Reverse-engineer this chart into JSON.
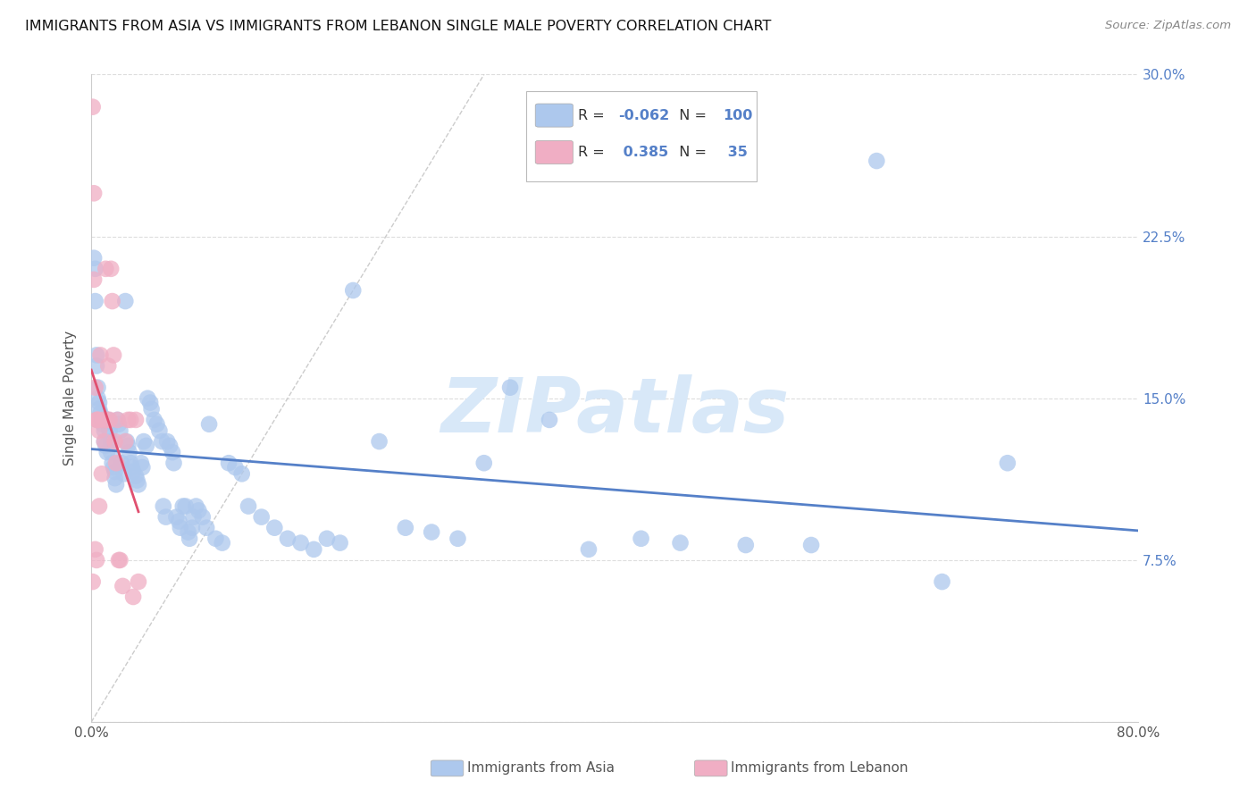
{
  "title": "IMMIGRANTS FROM ASIA VS IMMIGRANTS FROM LEBANON SINGLE MALE POVERTY CORRELATION CHART",
  "source": "Source: ZipAtlas.com",
  "ylabel": "Single Male Poverty",
  "xlim": [
    0,
    0.8
  ],
  "ylim": [
    0,
    0.3
  ],
  "yticks": [
    0.0,
    0.075,
    0.15,
    0.225,
    0.3
  ],
  "yticklabels_right": [
    "",
    "7.5%",
    "15.0%",
    "22.5%",
    "30.0%"
  ],
  "xtick_left_label": "0.0%",
  "xtick_right_label": "80.0%",
  "legend_blue_R": "-0.062",
  "legend_blue_N": "100",
  "legend_pink_R": "0.385",
  "legend_pink_N": "35",
  "blue_color": "#adc8ed",
  "pink_color": "#f0aec4",
  "blue_line_color": "#5580c8",
  "pink_line_color": "#e05070",
  "watermark_text": "ZIPatlas",
  "watermark_color": "#d8e8f8",
  "grid_color": "#dddddd",
  "title_color": "#111111",
  "source_color": "#888888",
  "right_tick_color": "#5580c8",
  "blue_scatter_x": [
    0.002,
    0.003,
    0.003,
    0.004,
    0.004,
    0.005,
    0.005,
    0.006,
    0.006,
    0.007,
    0.008,
    0.009,
    0.01,
    0.01,
    0.011,
    0.012,
    0.013,
    0.014,
    0.015,
    0.015,
    0.016,
    0.017,
    0.018,
    0.018,
    0.019,
    0.02,
    0.021,
    0.022,
    0.023,
    0.025,
    0.026,
    0.027,
    0.028,
    0.029,
    0.03,
    0.031,
    0.032,
    0.034,
    0.035,
    0.036,
    0.038,
    0.039,
    0.04,
    0.042,
    0.043,
    0.045,
    0.046,
    0.048,
    0.05,
    0.052,
    0.054,
    0.055,
    0.057,
    0.058,
    0.06,
    0.062,
    0.063,
    0.065,
    0.067,
    0.068,
    0.07,
    0.072,
    0.074,
    0.075,
    0.077,
    0.078,
    0.08,
    0.082,
    0.085,
    0.088,
    0.09,
    0.095,
    0.1,
    0.105,
    0.11,
    0.115,
    0.12,
    0.13,
    0.14,
    0.15,
    0.16,
    0.17,
    0.18,
    0.19,
    0.2,
    0.22,
    0.24,
    0.26,
    0.28,
    0.3,
    0.32,
    0.35,
    0.38,
    0.42,
    0.45,
    0.5,
    0.55,
    0.6,
    0.65,
    0.7
  ],
  "blue_scatter_y": [
    0.215,
    0.21,
    0.195,
    0.17,
    0.165,
    0.155,
    0.15,
    0.148,
    0.145,
    0.143,
    0.14,
    0.138,
    0.135,
    0.13,
    0.128,
    0.125,
    0.14,
    0.135,
    0.13,
    0.125,
    0.12,
    0.118,
    0.116,
    0.113,
    0.11,
    0.14,
    0.138,
    0.135,
    0.12,
    0.115,
    0.195,
    0.13,
    0.128,
    0.125,
    0.12,
    0.118,
    0.116,
    0.114,
    0.112,
    0.11,
    0.12,
    0.118,
    0.13,
    0.128,
    0.15,
    0.148,
    0.145,
    0.14,
    0.138,
    0.135,
    0.13,
    0.1,
    0.095,
    0.13,
    0.128,
    0.125,
    0.12,
    0.095,
    0.093,
    0.09,
    0.1,
    0.1,
    0.088,
    0.085,
    0.09,
    0.095,
    0.1,
    0.098,
    0.095,
    0.09,
    0.138,
    0.085,
    0.083,
    0.12,
    0.118,
    0.115,
    0.1,
    0.095,
    0.09,
    0.085,
    0.083,
    0.08,
    0.085,
    0.083,
    0.2,
    0.13,
    0.09,
    0.088,
    0.085,
    0.12,
    0.155,
    0.14,
    0.08,
    0.085,
    0.083,
    0.082,
    0.082,
    0.26,
    0.065,
    0.12
  ],
  "pink_scatter_x": [
    0.001,
    0.001,
    0.002,
    0.002,
    0.003,
    0.003,
    0.004,
    0.004,
    0.005,
    0.005,
    0.006,
    0.006,
    0.007,
    0.008,
    0.009,
    0.01,
    0.011,
    0.012,
    0.013,
    0.014,
    0.015,
    0.016,
    0.017,
    0.018,
    0.019,
    0.02,
    0.021,
    0.022,
    0.024,
    0.026,
    0.028,
    0.03,
    0.032,
    0.034,
    0.036
  ],
  "pink_scatter_y": [
    0.285,
    0.065,
    0.245,
    0.205,
    0.155,
    0.08,
    0.14,
    0.075,
    0.14,
    0.14,
    0.135,
    0.1,
    0.17,
    0.115,
    0.14,
    0.13,
    0.21,
    0.14,
    0.165,
    0.14,
    0.21,
    0.195,
    0.17,
    0.13,
    0.12,
    0.14,
    0.075,
    0.075,
    0.063,
    0.13,
    0.14,
    0.14,
    0.058,
    0.14,
    0.065
  ]
}
